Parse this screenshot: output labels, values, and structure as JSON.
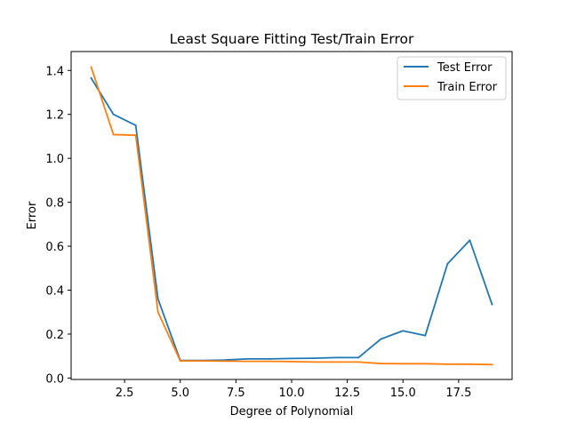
{
  "chart_data": {
    "type": "line",
    "title": "Least Square Fitting Test/Train Error",
    "xlabel": "Degree of Polynomial",
    "ylabel": "Error",
    "xlim": [
      0.1,
      19.9
    ],
    "ylim": [
      -0.0065,
      1.486
    ],
    "x": [
      1,
      2,
      3,
      4,
      5,
      6,
      7,
      8,
      9,
      10,
      11,
      12,
      13,
      14,
      15,
      16,
      17,
      18,
      19
    ],
    "xticks": [
      2.5,
      5.0,
      7.5,
      10.0,
      12.5,
      15.0,
      17.5
    ],
    "xtick_labels": [
      "2.5",
      "5.0",
      "7.5",
      "10.0",
      "12.5",
      "15.0",
      "17.5"
    ],
    "yticks": [
      0.0,
      0.2,
      0.4,
      0.6,
      0.8,
      1.0,
      1.2,
      1.4
    ],
    "ytick_labels": [
      "0.0",
      "0.2",
      "0.4",
      "0.6",
      "0.8",
      "1.0",
      "1.2",
      "1.4"
    ],
    "grid": false,
    "legend_position": "top-right",
    "series": [
      {
        "name": "Test Error",
        "color": "#1f77b4",
        "values": [
          1.365,
          1.2,
          1.15,
          0.36,
          0.08,
          0.08,
          0.082,
          0.087,
          0.087,
          0.089,
          0.09,
          0.093,
          0.093,
          0.177,
          0.215,
          0.193,
          0.52,
          0.627,
          0.335
        ]
      },
      {
        "name": "Train Error",
        "color": "#ff7f0e",
        "values": [
          1.415,
          1.108,
          1.105,
          0.3,
          0.078,
          0.078,
          0.077,
          0.076,
          0.076,
          0.075,
          0.073,
          0.073,
          0.073,
          0.066,
          0.065,
          0.065,
          0.063,
          0.063,
          0.061
        ]
      }
    ]
  }
}
